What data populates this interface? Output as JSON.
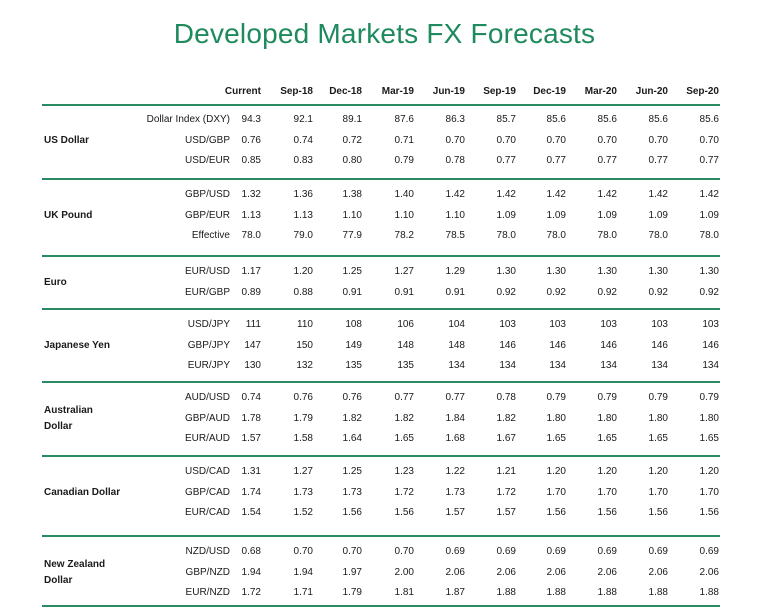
{
  "title": "Developed Markets FX Forecasts",
  "columns": [
    "Current",
    "Sep-18",
    "Dec-18",
    "Mar-19",
    "Jun-19",
    "Sep-19",
    "Dec-19",
    "Mar-20",
    "Jun-20",
    "Sep-20"
  ],
  "groups": [
    {
      "name": [
        "US Dollar"
      ],
      "rows": [
        {
          "label": "Dollar Index (DXY)",
          "values": [
            "94.3",
            "92.1",
            "89.1",
            "87.6",
            "86.3",
            "85.7",
            "85.6",
            "85.6",
            "85.6",
            "85.6"
          ]
        },
        {
          "label": "USD/GBP",
          "values": [
            "0.76",
            "0.74",
            "0.72",
            "0.71",
            "0.70",
            "0.70",
            "0.70",
            "0.70",
            "0.70",
            "0.70"
          ]
        },
        {
          "label": "USD/EUR",
          "values": [
            "0.85",
            "0.83",
            "0.80",
            "0.79",
            "0.78",
            "0.77",
            "0.77",
            "0.77",
            "0.77",
            "0.77"
          ]
        }
      ]
    },
    {
      "name": [
        "UK Pound"
      ],
      "rows": [
        {
          "label": "GBP/USD",
          "values": [
            "1.32",
            "1.36",
            "1.38",
            "1.40",
            "1.42",
            "1.42",
            "1.42",
            "1.42",
            "1.42",
            "1.42"
          ]
        },
        {
          "label": "GBP/EUR",
          "values": [
            "1.13",
            "1.13",
            "1.10",
            "1.10",
            "1.10",
            "1.09",
            "1.09",
            "1.09",
            "1.09",
            "1.09"
          ]
        },
        {
          "label": "Effective",
          "values": [
            "78.0",
            "79.0",
            "77.9",
            "78.2",
            "78.5",
            "78.0",
            "78.0",
            "78.0",
            "78.0",
            "78.0"
          ]
        }
      ]
    },
    {
      "name": [
        "Euro"
      ],
      "rows": [
        {
          "label": "EUR/USD",
          "values": [
            "1.17",
            "1.20",
            "1.25",
            "1.27",
            "1.29",
            "1.30",
            "1.30",
            "1.30",
            "1.30",
            "1.30"
          ]
        },
        {
          "label": "EUR/GBP",
          "values": [
            "0.89",
            "0.88",
            "0.91",
            "0.91",
            "0.91",
            "0.92",
            "0.92",
            "0.92",
            "0.92",
            "0.92"
          ]
        }
      ]
    },
    {
      "name": [
        "Japanese Yen"
      ],
      "rows": [
        {
          "label": "USD/JPY",
          "values": [
            "111",
            "110",
            "108",
            "106",
            "104",
            "103",
            "103",
            "103",
            "103",
            "103"
          ]
        },
        {
          "label": "GBP/JPY",
          "values": [
            "147",
            "150",
            "149",
            "148",
            "148",
            "146",
            "146",
            "146",
            "146",
            "146"
          ]
        },
        {
          "label": "EUR/JPY",
          "values": [
            "130",
            "132",
            "135",
            "135",
            "134",
            "134",
            "134",
            "134",
            "134",
            "134"
          ]
        }
      ]
    },
    {
      "name": [
        "Australian",
        "Dollar"
      ],
      "rows": [
        {
          "label": "AUD/USD",
          "values": [
            "0.74",
            "0.76",
            "0.76",
            "0.77",
            "0.77",
            "0.78",
            "0.79",
            "0.79",
            "0.79",
            "0.79"
          ]
        },
        {
          "label": "GBP/AUD",
          "values": [
            "1.78",
            "1.79",
            "1.82",
            "1.82",
            "1.84",
            "1.82",
            "1.80",
            "1.80",
            "1.80",
            "1.80"
          ]
        },
        {
          "label": "EUR/AUD",
          "values": [
            "1.57",
            "1.58",
            "1.64",
            "1.65",
            "1.68",
            "1.67",
            "1.65",
            "1.65",
            "1.65",
            "1.65"
          ]
        }
      ]
    },
    {
      "name": [
        "Canadian Dollar"
      ],
      "rows": [
        {
          "label": "USD/CAD",
          "values": [
            "1.31",
            "1.27",
            "1.25",
            "1.23",
            "1.22",
            "1.21",
            "1.20",
            "1.20",
            "1.20",
            "1.20"
          ]
        },
        {
          "label": "GBP/CAD",
          "values": [
            "1.74",
            "1.73",
            "1.73",
            "1.72",
            "1.73",
            "1.72",
            "1.70",
            "1.70",
            "1.70",
            "1.70"
          ]
        },
        {
          "label": "EUR/CAD",
          "values": [
            "1.54",
            "1.52",
            "1.56",
            "1.56",
            "1.57",
            "1.57",
            "1.56",
            "1.56",
            "1.56",
            "1.56"
          ]
        }
      ]
    },
    {
      "name": [
        "New Zealand",
        "Dollar"
      ],
      "rows": [
        {
          "label": "NZD/USD",
          "values": [
            "0.68",
            "0.70",
            "0.70",
            "0.70",
            "0.69",
            "0.69",
            "0.69",
            "0.69",
            "0.69",
            "0.69"
          ]
        },
        {
          "label": "GBP/NZD",
          "values": [
            "1.94",
            "1.94",
            "1.97",
            "2.00",
            "2.06",
            "2.06",
            "2.06",
            "2.06",
            "2.06",
            "2.06"
          ]
        },
        {
          "label": "EUR/NZD",
          "values": [
            "1.72",
            "1.71",
            "1.79",
            "1.81",
            "1.87",
            "1.88",
            "1.88",
            "1.88",
            "1.88",
            "1.88"
          ]
        }
      ]
    }
  ]
}
